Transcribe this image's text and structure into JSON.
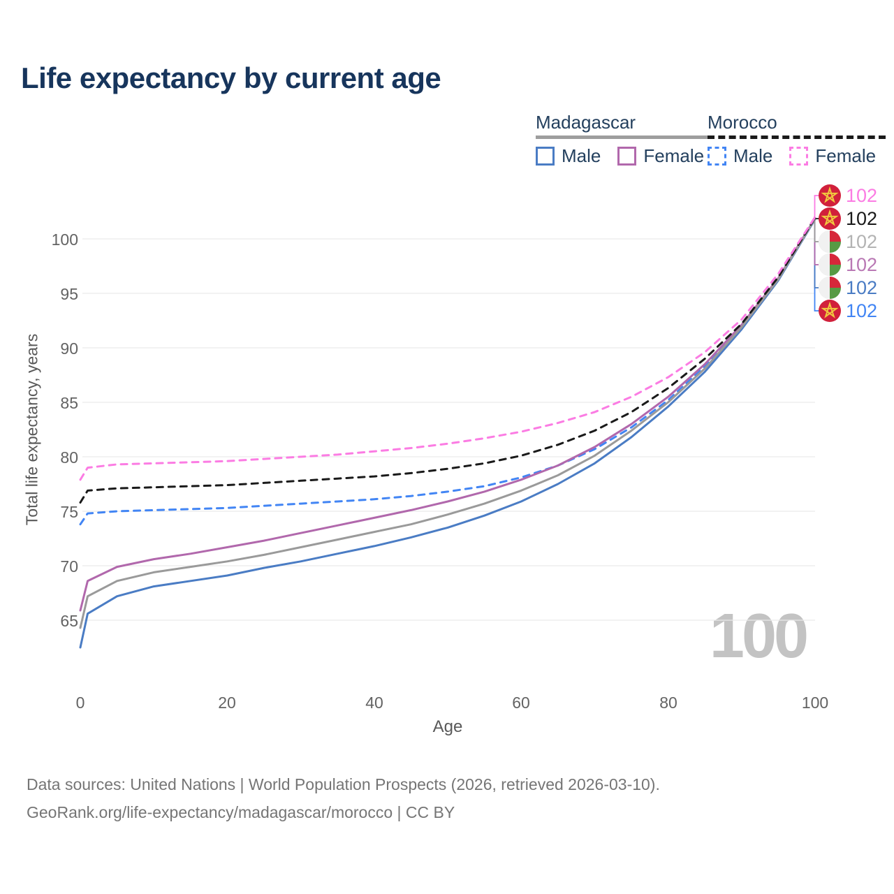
{
  "page": {
    "title": "Life expectancy by current age"
  },
  "legend": {
    "groups": [
      {
        "title": "Madagascar",
        "underline_style": "solid",
        "line_color": "#9e9e9e",
        "items": [
          {
            "label": "Male",
            "box_style": "solid",
            "color": "#4a7cc4"
          },
          {
            "label": "Female",
            "box_style": "solid",
            "color": "#b168ac"
          }
        ]
      },
      {
        "title": "Morocco",
        "underline_style": "dashed",
        "line_color": "#1a1a1a",
        "items": [
          {
            "label": "Male",
            "box_style": "dashed",
            "color": "#4285f4"
          },
          {
            "label": "Female",
            "box_style": "dashed",
            "color": "#fb7ce3"
          }
        ]
      }
    ]
  },
  "chart_data": {
    "type": "line",
    "title": "Life expectancy by current age",
    "xlabel": "Age",
    "ylabel": "Total life expectancy, years",
    "xlim": [
      0,
      100
    ],
    "ylim": [
      62,
      103
    ],
    "x_ticks": [
      0,
      20,
      40,
      60,
      80,
      100
    ],
    "y_ticks": [
      100,
      95,
      90,
      85,
      80,
      75,
      70,
      65
    ],
    "grid": "horizontal-only",
    "legend_position": "top-right",
    "current_age_indicator": "100",
    "ages": [
      0,
      1,
      5,
      10,
      15,
      20,
      25,
      30,
      35,
      40,
      45,
      50,
      55,
      60,
      65,
      70,
      75,
      80,
      85,
      90,
      95,
      100
    ],
    "series": [
      {
        "name": "Morocco Female",
        "country": "Morocco",
        "sex": "Female",
        "flag": "morocco",
        "color": "#fb7ce3",
        "label_color": "#fb7ce3",
        "dashed": true,
        "end_label": "102",
        "label_row": 0,
        "values": [
          77.9,
          79.0,
          79.3,
          79.4,
          79.5,
          79.6,
          79.8,
          80.0,
          80.2,
          80.5,
          80.8,
          81.2,
          81.7,
          82.3,
          83.1,
          84.1,
          85.5,
          87.3,
          89.6,
          92.6,
          96.8,
          102.0
        ]
      },
      {
        "name": "Morocco",
        "country": "Morocco",
        "sex": "All",
        "flag": "morocco",
        "color": "#1a1a1a",
        "label_color": "#1a1a1a",
        "dashed": true,
        "end_label": "102",
        "label_row": 1,
        "values": [
          75.8,
          76.9,
          77.1,
          77.2,
          77.3,
          77.4,
          77.6,
          77.8,
          78.0,
          78.2,
          78.5,
          78.9,
          79.4,
          80.1,
          81.1,
          82.4,
          84.1,
          86.3,
          89.0,
          92.2,
          96.5,
          101.95
        ]
      },
      {
        "name": "Madagascar",
        "country": "Madagascar",
        "sex": "All",
        "flag": "madagascar",
        "color": "#9a9a9a",
        "label_color": "#b3b3b3",
        "dashed": false,
        "end_label": "102",
        "label_row": 2,
        "values": [
          64.3,
          67.2,
          68.6,
          69.4,
          69.9,
          70.4,
          71.0,
          71.7,
          72.4,
          73.1,
          73.8,
          74.7,
          75.7,
          76.9,
          78.3,
          80.1,
          82.4,
          85.0,
          88.1,
          91.9,
          96.3,
          101.85
        ]
      },
      {
        "name": "Madagascar Female",
        "country": "Madagascar",
        "sex": "Female",
        "flag": "madagascar",
        "color": "#b168ac",
        "label_color": "#b978b4",
        "dashed": false,
        "end_label": "102",
        "label_row": 3,
        "values": [
          65.9,
          68.6,
          69.9,
          70.6,
          71.1,
          71.7,
          72.3,
          73.0,
          73.7,
          74.4,
          75.1,
          75.9,
          76.8,
          77.9,
          79.2,
          80.9,
          83.0,
          85.5,
          88.5,
          92.1,
          96.4,
          101.9
        ]
      },
      {
        "name": "Madagascar Male",
        "country": "Madagascar",
        "sex": "Male",
        "flag": "madagascar",
        "color": "#4a7cc4",
        "label_color": "#4a7cc4",
        "dashed": false,
        "end_label": "102",
        "label_row": 4,
        "values": [
          62.5,
          65.6,
          67.2,
          68.1,
          68.6,
          69.1,
          69.8,
          70.4,
          71.1,
          71.8,
          72.6,
          73.5,
          74.6,
          75.9,
          77.5,
          79.4,
          81.8,
          84.6,
          87.8,
          91.7,
          96.2,
          101.8
        ]
      },
      {
        "name": "Morocco Male",
        "country": "Morocco",
        "sex": "Male",
        "flag": "morocco",
        "color": "#4285f4",
        "label_color": "#4285f4",
        "dashed": true,
        "end_label": "102",
        "label_row": 5,
        "values": [
          73.8,
          74.8,
          75.0,
          75.1,
          75.2,
          75.3,
          75.5,
          75.7,
          75.9,
          76.1,
          76.4,
          76.8,
          77.3,
          78.1,
          79.2,
          80.7,
          82.7,
          85.2,
          88.3,
          91.9,
          96.3,
          101.8
        ]
      }
    ]
  },
  "footer": {
    "line1": "Data sources: United Nations | World Population Prospects (2026, retrieved 2026-03-10).",
    "line2": "GeoRank.org/life-expectancy/madagascar/morocco | CC BY"
  }
}
